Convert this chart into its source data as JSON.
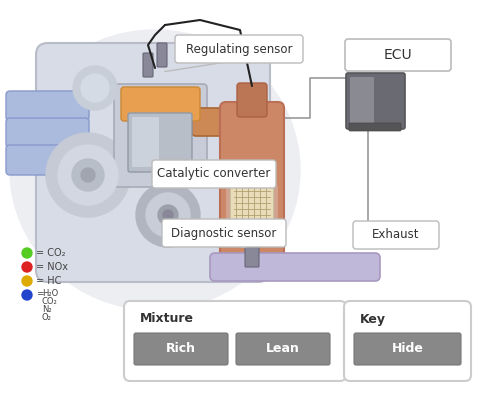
{
  "bg_color": "#ffffff",
  "labels": {
    "regulating_sensor": "Regulating sensor",
    "catalytic_converter": "Catalytic converter",
    "diagnostic_sensor": "Diagnostic sensor",
    "ecu": "ECU",
    "exhaust": "Exhaust",
    "mixture": "Mixture",
    "key": "Key",
    "rich": "Rich",
    "lean": "Lean",
    "hide": "Hide"
  },
  "legend_items": [
    {
      "color": "#55cc22",
      "label": "CO₂"
    },
    {
      "color": "#dd2222",
      "label": "NOx"
    },
    {
      "color": "#ddaa00",
      "label": "HC"
    },
    {
      "color": "#2244cc",
      "label": "H₂O\nCO₂\nN₂\nO₂"
    }
  ],
  "callout_bg": "#ffffff",
  "callout_border": "#bbbbbb",
  "button_bg": "#888888",
  "button_text_color": "#222222",
  "panel_bg": "#ffffff",
  "panel_border": "#cccccc",
  "wire_color": "#999999",
  "engine_bg": "#dde0e8",
  "engine_outer": "#c5c8d0",
  "cat_color": "#cc8866",
  "cat_neck_color": "#bb7755",
  "honeycomb_color": "#e8ddb8",
  "exhaust_pipe_color": "#c0b8d8",
  "exhaust_pipe_edge": "#a898c0",
  "ecu_device_color": "#777777",
  "piston_head_color": "#e8a050",
  "blue_pipe_color": "#aabbdd",
  "blue_pipe_edge": "#8899cc"
}
